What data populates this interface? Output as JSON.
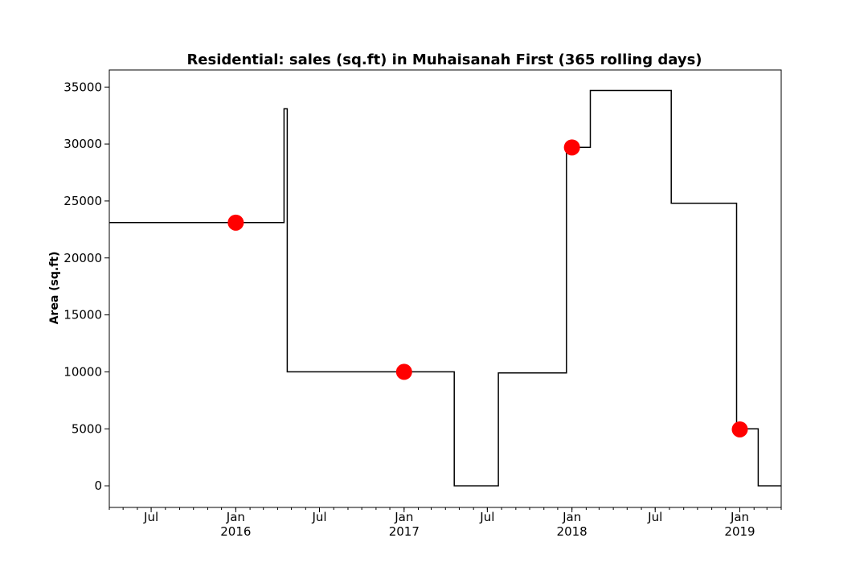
{
  "chart_data": {
    "type": "line",
    "title": "Residential: sales (sq.ft) in Muhaisanah First (365 rolling days)",
    "xlabel": "",
    "ylabel": "Area (sq.ft)",
    "ylim": [
      -1900,
      36500
    ],
    "xlim": [
      "2015-04-01",
      "2019-04-01"
    ],
    "y_ticks": [
      0,
      5000,
      10000,
      15000,
      20000,
      25000,
      30000,
      35000
    ],
    "y_tick_labels": [
      "0",
      "5000",
      "10000",
      "15000",
      "20000",
      "25000",
      "30000",
      "35000"
    ],
    "x_ticks": [
      {
        "date": "2015-07-01",
        "label": "Jul",
        "sub": ""
      },
      {
        "date": "2016-01-01",
        "label": "Jan",
        "sub": "2016"
      },
      {
        "date": "2016-07-01",
        "label": "Jul",
        "sub": ""
      },
      {
        "date": "2017-01-01",
        "label": "Jan",
        "sub": "2017"
      },
      {
        "date": "2017-07-01",
        "label": "Jul",
        "sub": ""
      },
      {
        "date": "2018-01-01",
        "label": "Jan",
        "sub": "2018"
      },
      {
        "date": "2018-07-01",
        "label": "Jul",
        "sub": ""
      },
      {
        "date": "2019-01-01",
        "label": "Jan",
        "sub": "2019"
      }
    ],
    "series": [
      {
        "line_color": "#000000",
        "step": [
          {
            "x": "2015-04-01",
            "y": 23100
          },
          {
            "x": "2016-04-15",
            "y": 33100
          },
          {
            "x": "2016-04-22",
            "y": 10000
          },
          {
            "x": "2017-04-20",
            "y": 0
          },
          {
            "x": "2017-07-25",
            "y": 9900
          },
          {
            "x": "2017-12-20",
            "y": 29700
          },
          {
            "x": "2018-02-10",
            "y": 34700
          },
          {
            "x": "2018-08-05",
            "y": 24800
          },
          {
            "x": "2018-12-25",
            "y": 5000
          },
          {
            "x": "2019-02-10",
            "y": 0
          }
        ],
        "end": "2019-04-01"
      }
    ],
    "markers": {
      "color": "#ff0000",
      "points": [
        {
          "x": "2016-01-01",
          "y": 23100
        },
        {
          "x": "2017-01-01",
          "y": 10000
        },
        {
          "x": "2018-01-01",
          "y": 29700
        },
        {
          "x": "2019-01-01",
          "y": 4950
        }
      ]
    },
    "grid": false,
    "legend": "none"
  }
}
